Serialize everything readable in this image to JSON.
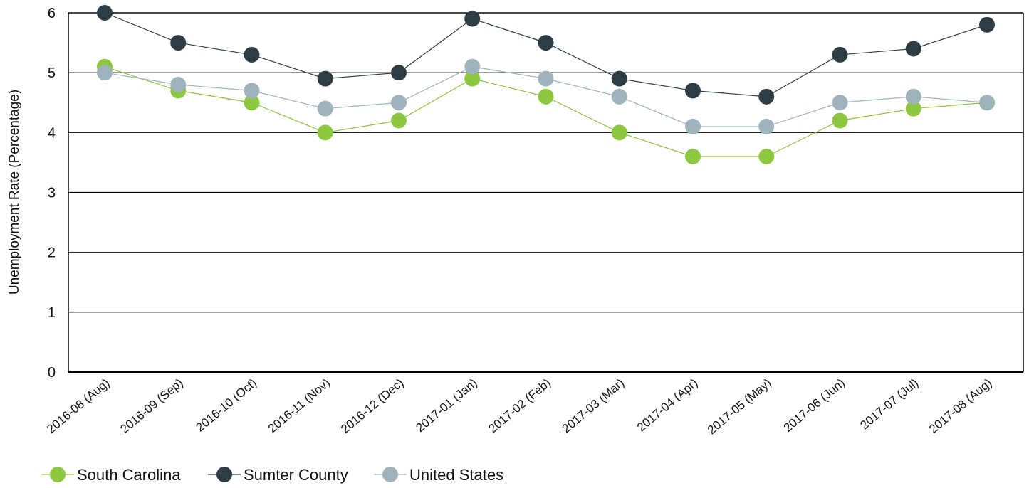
{
  "chart_data": {
    "type": "line",
    "title": "",
    "xlabel": "",
    "ylabel": "Unemployment Rate (Percentage)",
    "ylim": [
      0,
      6
    ],
    "yticks": [
      0,
      1,
      2,
      3,
      4,
      5,
      6
    ],
    "grid": "horizontal",
    "legend_position": "bottom-left",
    "categories": [
      "2016-08 (Aug)",
      "2016-09 (Sep)",
      "2016-10 (Oct)",
      "2016-11 (Nov)",
      "2016-12 (Dec)",
      "2017-01 (Jan)",
      "2017-02 (Feb)",
      "2017-03 (Mar)",
      "2017-04 (Apr)",
      "2017-05 (May)",
      "2017-06 (Jun)",
      "2017-07 (Jul)",
      "2017-08 (Aug)"
    ],
    "series": [
      {
        "name": "South Carolina",
        "color": "#8dc63f",
        "values": [
          5.1,
          4.7,
          4.5,
          4.0,
          4.2,
          4.9,
          4.6,
          4.0,
          3.6,
          3.6,
          4.2,
          4.4,
          4.5
        ]
      },
      {
        "name": "Sumter County",
        "color": "#2e3d44",
        "values": [
          6.0,
          5.5,
          5.3,
          4.9,
          5.0,
          5.9,
          5.5,
          4.9,
          4.7,
          4.6,
          5.3,
          5.4,
          5.8
        ]
      },
      {
        "name": "United States",
        "color": "#9fb3bc",
        "values": [
          5.0,
          4.8,
          4.7,
          4.4,
          4.5,
          5.1,
          4.9,
          4.6,
          4.1,
          4.1,
          4.5,
          4.6,
          4.5
        ]
      }
    ]
  }
}
